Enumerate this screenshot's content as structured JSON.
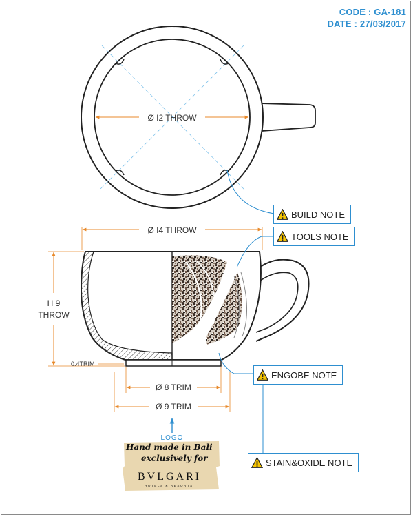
{
  "header": {
    "code": "CODE : GA-181",
    "date": "DATE : 27/03/2017"
  },
  "top_view": {
    "diameter_label": "Ø I2 THROW"
  },
  "side_view": {
    "width_label": "Ø I4 THROW",
    "height_label_line1": "H 9",
    "height_label_line2": "THROW",
    "trim_thickness_label": "0.4TRIM",
    "foot_inner_label": "Ø 8 TRIM",
    "foot_outer_label": "Ø 9 TRIM"
  },
  "notes": {
    "build": "BUILD NOTE",
    "tools": "TOOLS NOTE",
    "engobe": "ENGOBE NOTE",
    "stain": "STAIN&OXIDE NOTE"
  },
  "logo": {
    "label": "LOGO",
    "line1": "Hand made in Bali",
    "line2": "exclusively for",
    "brand": "BVLGARI",
    "brand_sub": "HOTELS & RESORTS"
  },
  "colors": {
    "accent": "#2e8fd0",
    "dimension": "#e88a2b",
    "outline": "#222222",
    "logo_bg": "#e9d7b0"
  },
  "icons": [
    "warning-icon"
  ]
}
